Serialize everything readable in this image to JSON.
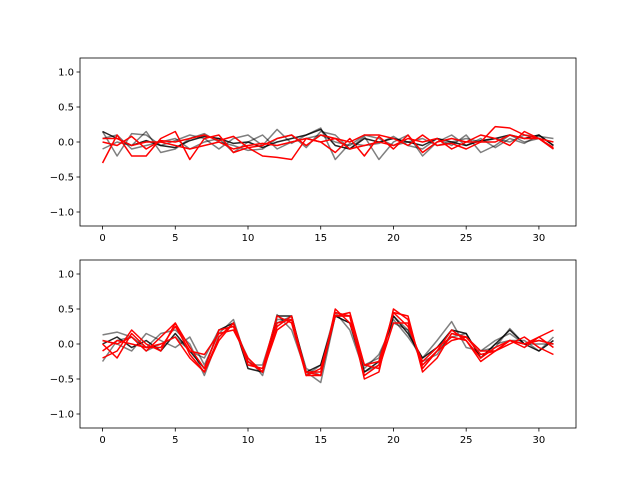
{
  "chart_data": [
    {
      "type": "line",
      "title": "",
      "xlabel": "",
      "ylabel": "",
      "xlim": [
        -1.55,
        32.55
      ],
      "ylim": [
        -1.2,
        1.2
      ],
      "xticks": [
        0,
        5,
        10,
        15,
        20,
        25,
        30
      ],
      "yticks": [
        -1.0,
        -0.5,
        0.0,
        0.5,
        1.0
      ],
      "xtick_labels": [
        "0",
        "5",
        "10",
        "15",
        "20",
        "25",
        "30"
      ],
      "ytick_labels": [
        "−1.0",
        "−0.5",
        "0.0",
        "0.5",
        "1.0"
      ],
      "grid": false,
      "colors": {
        "gray": "#000000",
        "red": "#ff0000"
      },
      "x": [
        0,
        1,
        2,
        3,
        4,
        5,
        6,
        7,
        8,
        9,
        10,
        11,
        12,
        13,
        14,
        15,
        16,
        17,
        18,
        19,
        20,
        21,
        22,
        23,
        24,
        25,
        26,
        27,
        28,
        29,
        30,
        31
      ],
      "series": [
        {
          "color": "gray",
          "opacity": 0.5,
          "values": [
            0.15,
            -0.2,
            0.12,
            0.1,
            -0.05,
            0.02,
            0.1,
            0.05,
            -0.1,
            0.05,
            0.1,
            -0.05,
            0.18,
            -0.02,
            0.1,
            0.2,
            -0.25,
            -0.02,
            -0.05,
            -0.02,
            0.08,
            -0.05,
            -0.1,
            0.05,
            -0.05,
            0.1,
            -0.15,
            -0.05,
            0.1,
            0.0,
            0.05,
            -0.1
          ]
        },
        {
          "color": "gray",
          "opacity": 0.5,
          "values": [
            -0.1,
            0.0,
            -0.05,
            0.15,
            -0.15,
            -0.1,
            0.05,
            0.12,
            0.0,
            -0.05,
            -0.12,
            -0.1,
            0.05,
            0.1,
            -0.08,
            0.15,
            0.1,
            -0.1,
            0.08,
            -0.25,
            0.0,
            0.1,
            -0.2,
            0.0,
            0.1,
            -0.05,
            0.05,
            -0.08,
            0.05,
            -0.02,
            0.1,
            -0.05
          ]
        },
        {
          "color": "gray",
          "opacity": 0.5,
          "values": [
            0.05,
            0.1,
            -0.1,
            -0.05,
            0.0,
            0.05,
            -0.1,
            0.0,
            0.05,
            -0.15,
            0.0,
            0.1,
            -0.1,
            0.0,
            0.05,
            0.1,
            0.0,
            -0.05,
            0.1,
            0.05,
            -0.05,
            0.0,
            0.05,
            -0.05,
            0.0,
            0.05,
            0.0,
            0.05,
            0.0,
            0.1,
            0.08,
            0.05
          ]
        },
        {
          "color": "gray",
          "opacity": 0.85,
          "values": [
            0.15,
            0.05,
            -0.05,
            0.02,
            -0.05,
            -0.08,
            0.02,
            0.08,
            0.05,
            -0.02,
            0.0,
            -0.08,
            0.0,
            0.05,
            0.1,
            0.18,
            -0.05,
            -0.1,
            0.05,
            0.0,
            0.05,
            0.0,
            -0.05,
            0.05,
            0.0,
            -0.05,
            0.02,
            0.05,
            0.1,
            0.05,
            0.1,
            -0.05
          ]
        },
        {
          "color": "red",
          "opacity": 1,
          "values": [
            -0.3,
            0.1,
            -0.2,
            -0.2,
            0.05,
            0.15,
            -0.25,
            0.05,
            0.1,
            -0.15,
            -0.08,
            -0.2,
            -0.22,
            -0.25,
            0.05,
            0.0,
            -0.15,
            0.05,
            -0.2,
            0.08,
            -0.1,
            0.1,
            -0.15,
            0.0,
            0.05,
            0.0,
            0.0,
            0.0,
            0.1,
            0.05,
            0.05,
            -0.1
          ]
        },
        {
          "color": "red",
          "opacity": 1,
          "values": [
            0.05,
            0.05,
            -0.05,
            0.0,
            0.0,
            -0.05,
            -0.1,
            -0.05,
            0.0,
            -0.1,
            -0.05,
            -0.02,
            -0.05,
            0.0,
            0.05,
            0.0,
            0.05,
            0.0,
            0.1,
            0.1,
            0.05,
            -0.05,
            0.1,
            -0.05,
            -0.02,
            -0.1,
            0.0,
            0.22,
            0.2,
            0.1,
            0.05,
            -0.08
          ]
        },
        {
          "color": "red",
          "opacity": 1,
          "values": [
            0.0,
            -0.05,
            0.08,
            -0.1,
            0.02,
            0.0,
            0.05,
            0.1,
            0.02,
            0.08,
            -0.08,
            -0.05,
            0.05,
            0.1,
            -0.05,
            0.1,
            0.05,
            -0.1,
            -0.05,
            0.0,
            -0.05,
            0.05,
            0.0,
            0.05,
            -0.1,
            0.0,
            0.1,
            0.05,
            -0.05,
            0.15,
            0.05,
            0.0
          ]
        }
      ]
    },
    {
      "type": "line",
      "title": "",
      "xlabel": "",
      "ylabel": "",
      "xlim": [
        -1.55,
        32.55
      ],
      "ylim": [
        -1.2,
        1.2
      ],
      "xticks": [
        0,
        5,
        10,
        15,
        20,
        25,
        30
      ],
      "yticks": [
        -1.0,
        -0.5,
        0.0,
        0.5,
        1.0
      ],
      "xtick_labels": [
        "0",
        "5",
        "10",
        "15",
        "20",
        "25",
        "30"
      ],
      "ytick_labels": [
        "−1.0",
        "−0.5",
        "0.0",
        "0.5",
        "1.0"
      ],
      "grid": false,
      "colors": {
        "gray": "#000000",
        "red": "#ff0000"
      },
      "x": [
        0,
        1,
        2,
        3,
        4,
        5,
        6,
        7,
        8,
        9,
        10,
        11,
        12,
        13,
        14,
        15,
        16,
        17,
        18,
        19,
        20,
        21,
        22,
        23,
        24,
        25,
        26,
        27,
        28,
        29,
        30,
        31
      ],
      "series": [
        {
          "color": "gray",
          "opacity": 0.5,
          "values": [
            0.13,
            0.17,
            0.1,
            -0.05,
            0.15,
            0.2,
            0.0,
            -0.45,
            0.1,
            0.3,
            -0.25,
            -0.4,
            0.42,
            0.2,
            -0.4,
            -0.55,
            0.4,
            0.3,
            -0.3,
            -0.2,
            0.35,
            0.1,
            -0.2,
            0.05,
            0.32,
            -0.05,
            -0.1,
            -0.05,
            0.22,
            0.0,
            0.05,
            0.0
          ]
        },
        {
          "color": "gray",
          "opacity": 0.5,
          "values": [
            -0.25,
            0.05,
            0.1,
            -0.1,
            0.0,
            0.1,
            -0.1,
            -0.2,
            0.2,
            0.25,
            -0.2,
            -0.45,
            0.3,
            0.4,
            -0.45,
            -0.3,
            0.45,
            0.2,
            -0.4,
            -0.3,
            0.4,
            0.2,
            -0.3,
            -0.1,
            0.1,
            0.15,
            -0.2,
            0.0,
            0.05,
            0.05,
            -0.1,
            0.1
          ]
        },
        {
          "color": "gray",
          "opacity": 0.5,
          "values": [
            0.05,
            0.0,
            -0.1,
            0.15,
            0.05,
            -0.05,
            0.1,
            -0.3,
            0.15,
            0.35,
            -0.3,
            -0.3,
            0.35,
            0.35,
            -0.35,
            -0.45,
            0.4,
            0.4,
            -0.35,
            -0.15,
            0.3,
            0.2,
            -0.25,
            -0.15,
            0.15,
            0.1,
            -0.1,
            0.05,
            0.15,
            0.0,
            0.0,
            0.0
          ]
        },
        {
          "color": "gray",
          "opacity": 0.85,
          "values": [
            0.0,
            0.1,
            -0.05,
            0.05,
            -0.1,
            0.15,
            -0.1,
            -0.35,
            0.2,
            0.3,
            -0.35,
            -0.4,
            0.4,
            0.4,
            -0.4,
            -0.3,
            0.4,
            0.3,
            -0.4,
            -0.25,
            0.4,
            0.15,
            -0.2,
            -0.05,
            0.2,
            0.15,
            -0.2,
            0.0,
            0.2,
            0.0,
            -0.1,
            0.05
          ]
        },
        {
          "color": "red",
          "opacity": 1,
          "values": [
            -0.2,
            -0.1,
            0.2,
            0.0,
            -0.1,
            0.3,
            -0.15,
            -0.4,
            0.05,
            0.3,
            -0.25,
            -0.4,
            0.25,
            0.4,
            -0.45,
            -0.45,
            0.45,
            0.4,
            -0.5,
            -0.4,
            0.5,
            0.35,
            -0.35,
            -0.1,
            0.2,
            0.05,
            -0.25,
            -0.1,
            0.05,
            0.0,
            0.1,
            0.2
          ]
        },
        {
          "color": "red",
          "opacity": 1,
          "values": [
            0.05,
            0.0,
            0.1,
            -0.1,
            0.1,
            0.3,
            -0.05,
            -0.35,
            0.2,
            0.25,
            -0.25,
            -0.4,
            0.3,
            0.35,
            -0.4,
            -0.4,
            0.4,
            0.4,
            -0.45,
            -0.3,
            0.45,
            0.4,
            -0.4,
            -0.2,
            0.15,
            0.1,
            -0.15,
            -0.1,
            0.05,
            0.0,
            0.05,
            0.0
          ]
        },
        {
          "color": "red",
          "opacity": 1,
          "values": [
            -0.1,
            0.05,
            0.0,
            -0.05,
            0.0,
            0.1,
            -0.2,
            -0.4,
            0.1,
            0.3,
            -0.3,
            -0.35,
            0.4,
            0.3,
            -0.45,
            -0.35,
            0.4,
            0.45,
            -0.3,
            -0.25,
            0.45,
            0.25,
            -0.25,
            -0.05,
            0.1,
            0.05,
            -0.2,
            -0.05,
            0.05,
            -0.05,
            0.1,
            -0.05
          ]
        },
        {
          "color": "red",
          "opacity": 1,
          "values": [
            0.0,
            -0.2,
            0.15,
            -0.05,
            -0.05,
            0.25,
            -0.1,
            -0.15,
            0.15,
            0.2,
            -0.2,
            -0.4,
            0.2,
            0.35,
            -0.4,
            -0.45,
            0.5,
            0.3,
            -0.3,
            -0.35,
            0.3,
            0.3,
            -0.3,
            -0.1,
            0.05,
            0.1,
            -0.1,
            -0.1,
            0.0,
            0.1,
            -0.05,
            -0.15
          ]
        }
      ]
    }
  ]
}
